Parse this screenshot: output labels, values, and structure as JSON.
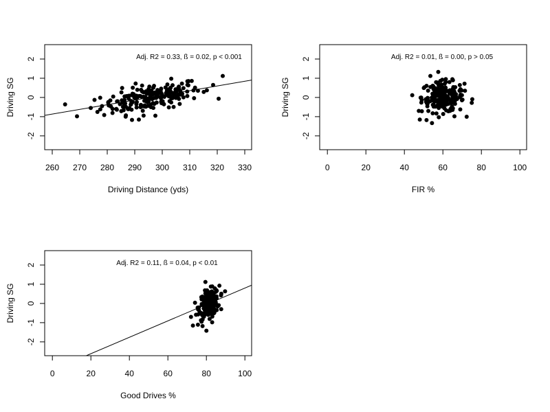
{
  "chart_data": [
    {
      "type": "scatter",
      "title": "",
      "xlabel": "Driving Distance (yds)",
      "ylabel": "Driving SG",
      "xlim": [
        257.25,
        332.5
      ],
      "ylim": [
        -2.72,
        2.75
      ],
      "xticks": [
        260,
        270,
        280,
        290,
        300,
        310,
        320,
        330
      ],
      "yticks": [
        2,
        1,
        0,
        -1,
        -2
      ],
      "annotation": "Adj. R2 = 0.33, ß = 0.02, p < 0.001",
      "regression": {
        "slope": 0.0244,
        "intercept": -7.21
      },
      "grid": false,
      "legend": "none",
      "points_summary": {
        "n_approx": 200,
        "x_center": 296,
        "x_spread": 9,
        "y_spread": 0.4,
        "outliers": [
          [
            269,
            -0.98
          ],
          [
            322,
            1.12
          ],
          [
            289,
            -1.17
          ],
          [
            291.5,
            -1.15
          ],
          [
            297.5,
            -0.95
          ],
          [
            274,
            -0.55
          ],
          [
            318.5,
            0.65
          ]
        ]
      }
    },
    {
      "type": "scatter",
      "title": "",
      "xlabel": "FIR %",
      "ylabel": "Driving SG",
      "xlim": [
        -4,
        103.5
      ],
      "ylim": [
        -2.72,
        2.75
      ],
      "xticks": [
        0,
        20,
        40,
        60,
        80,
        100
      ],
      "yticks": [
        2,
        1,
        0,
        -1,
        -2
      ],
      "annotation": "Adj. R2 = 0.01, ß = 0.00, p > 0.05",
      "regression": null,
      "grid": false,
      "legend": "none",
      "points_summary": {
        "n_approx": 200,
        "x_center": 60,
        "x_spread": 5.5,
        "y_spread": 0.4,
        "outliers": [
          [
            53.5,
            1.12
          ],
          [
            48,
            -1.15
          ],
          [
            51.5,
            -1.18
          ],
          [
            66,
            -0.98
          ],
          [
            75,
            -0.28
          ],
          [
            47.5,
            -0.7
          ]
        ]
      }
    },
    {
      "type": "scatter",
      "title": "",
      "xlabel": "Good Drives %",
      "ylabel": "Driving SG",
      "xlim": [
        -4,
        103.5
      ],
      "ylim": [
        -2.72,
        2.75
      ],
      "xticks": [
        0,
        20,
        40,
        60,
        80,
        100
      ],
      "yticks": [
        2,
        1,
        0,
        -1,
        -2
      ],
      "annotation": "Adj. R2 = 0.11, ß = 0.04, p < 0.01",
      "regression": {
        "slope": 0.0427,
        "intercept": -3.47
      },
      "grid": false,
      "legend": "none",
      "points_summary": {
        "n_approx": 200,
        "x_center": 81.5,
        "x_spread": 2.6,
        "y_spread": 0.4,
        "outliers": [
          [
            79.5,
            1.12
          ],
          [
            73,
            -1.15
          ],
          [
            78,
            -1.18
          ],
          [
            72,
            -0.7
          ],
          [
            83,
            -0.98
          ],
          [
            77.5,
            -0.95
          ]
        ]
      }
    }
  ]
}
